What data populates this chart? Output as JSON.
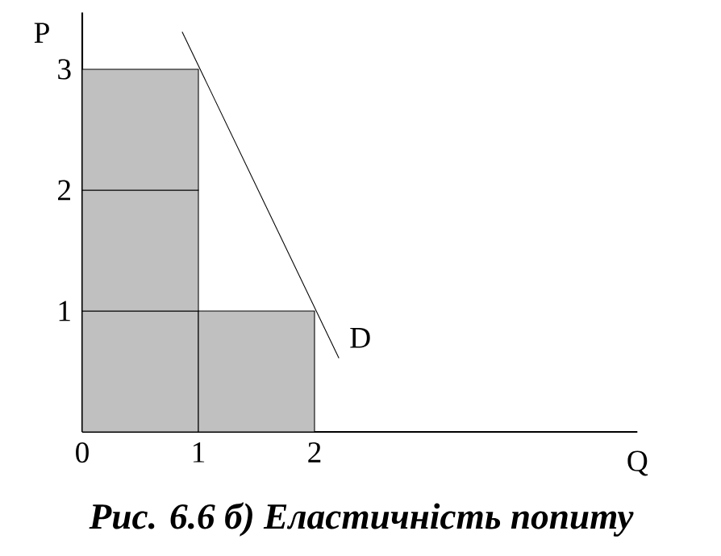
{
  "chart_data": {
    "type": "bar",
    "title": "Рис. 6.6 б) Еластичність попиту",
    "xlabel": "Q",
    "ylabel": "P",
    "x": [
      0.5,
      1.5
    ],
    "stacked": true,
    "series": [
      {
        "color": "#c0c0c0",
        "values": [
          1,
          1
        ]
      },
      {
        "color": "#c0c0c0",
        "values": [
          1,
          null
        ]
      },
      {
        "color": "#c0c0c0",
        "values": [
          1,
          null
        ]
      },
      {
        "type": "line",
        "name": "D",
        "color": "#000000",
        "x": [
          0.86,
          2.21
        ],
        "values": [
          3.31,
          0.61
        ],
        "marker": "none",
        "line_style": "solid"
      }
    ],
    "xlim": [
      0,
      4.78
    ],
    "ylim": [
      0,
      3.47
    ],
    "xticks": [
      0,
      1,
      2
    ],
    "yticks": [
      1,
      2,
      3
    ]
  }
}
